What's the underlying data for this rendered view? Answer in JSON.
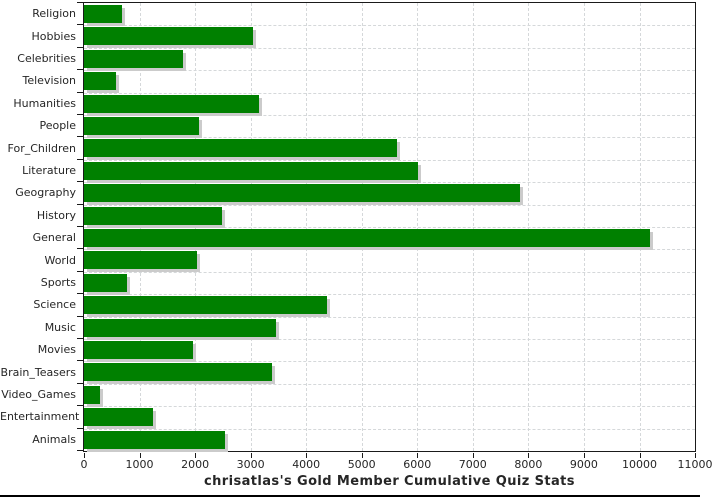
{
  "title": "chrisatlas's Gold Member Cumulative Quiz Stats",
  "colors": {
    "bar": "#008000",
    "bar_shadow": "#cbcbcb",
    "grid": "#d5d8da",
    "axis": "#1a1a1a",
    "text": "#262626",
    "bottom_rule": "#000000",
    "background": "#ffffff"
  },
  "chart_data": {
    "type": "bar",
    "orientation": "horizontal",
    "title": "chrisatlas's Gold Member Cumulative Quiz Stats",
    "categories": [
      "Religion",
      "Hobbies",
      "Celebrities",
      "Television",
      "Humanities",
      "People",
      "For_Children",
      "Literature",
      "Geography",
      "History",
      "General",
      "World",
      "Sports",
      "Science",
      "Music",
      "Movies",
      "Brain_Teasers",
      "Video_Games",
      "Entertainment",
      "Animals"
    ],
    "values": [
      690,
      3040,
      1780,
      580,
      3150,
      2070,
      5630,
      6010,
      7840,
      2480,
      10190,
      2030,
      780,
      4370,
      3460,
      1970,
      3390,
      280,
      1250,
      2530
    ],
    "xlabel": "",
    "ylabel": "",
    "xlim": [
      0,
      11000
    ],
    "x_tick_step": 1000,
    "x_tick_labels": [
      "0",
      "1000",
      "2000",
      "3000",
      "4000",
      "5000",
      "6000",
      "7000",
      "8000",
      "9000",
      "10000",
      "11000"
    ],
    "grid": true,
    "legend": "none"
  }
}
